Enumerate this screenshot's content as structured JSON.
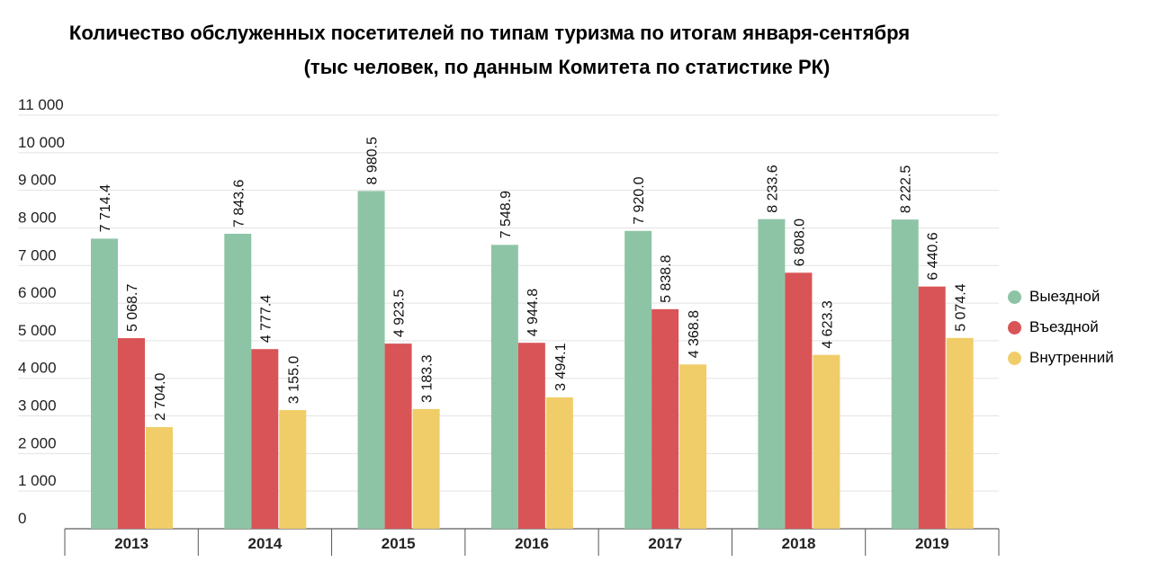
{
  "title_line1": "Количество обслуженных посетителей по типам туризма по итогам января-сентября",
  "title_line2": "(тыс человек, по данным Комитета по статистике РК)",
  "chart_data": {
    "type": "bar",
    "title": "Количество обслуженных посетителей по типам туризма по итогам января-сентября (тыс человек, по данным Комитета по статистике РК)",
    "categories": [
      "2013",
      "2014",
      "2015",
      "2016",
      "2017",
      "2018",
      "2019"
    ],
    "series": [
      {
        "name": "Выездной",
        "color": "#8ec4a6",
        "values": [
          7714.4,
          7843.6,
          8980.5,
          7548.9,
          7920.0,
          8233.6,
          8222.5
        ]
      },
      {
        "name": "Въездной",
        "color": "#d95456",
        "values": [
          5068.7,
          4777.4,
          4923.5,
          4944.8,
          5838.8,
          6808.0,
          6440.6
        ]
      },
      {
        "name": "Внутренний",
        "color": "#f0cd68",
        "values": [
          2704.0,
          3155.0,
          3183.3,
          3494.1,
          4368.8,
          4623.3,
          5074.4
        ]
      }
    ],
    "value_labels": [
      [
        "7 714.4",
        "7 843.6",
        "8 980.5",
        "7 548.9",
        "7 920.0",
        "8 233.6",
        "8 222.5"
      ],
      [
        "5 068.7",
        "4 777.4",
        "4 923.5",
        "4 944.8",
        "5 838.8",
        "6 808.0",
        "6 440.6"
      ],
      [
        "2 704.0",
        "3 155.0",
        "3 183.3",
        "3 494.1",
        "4 368.8",
        "4 623.3",
        "5 074.4"
      ]
    ],
    "y_ticks": [
      0,
      1000,
      2000,
      3000,
      4000,
      5000,
      6000,
      7000,
      8000,
      9000,
      10000,
      11000
    ],
    "y_tick_labels": [
      "0",
      "1 000",
      "2 000",
      "3 000",
      "4 000",
      "5 000",
      "6 000",
      "7 000",
      "8 000",
      "9 000",
      "10 000",
      "11 000"
    ],
    "ylim": [
      0,
      11000
    ],
    "grid": true,
    "legend_position": "right",
    "xlabel": "",
    "ylabel": ""
  }
}
